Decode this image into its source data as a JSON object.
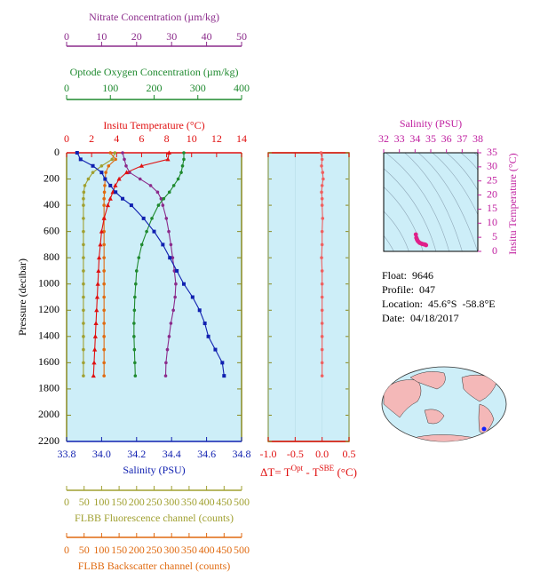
{
  "chart_data": [
    {
      "type": "line",
      "ylabel": "Pressure (decibar)",
      "ylim": [
        0,
        2200
      ],
      "yticks": [
        0,
        200,
        400,
        600,
        800,
        1000,
        1200,
        1400,
        1600,
        1800,
        2000,
        2200
      ],
      "y": [
        0,
        50,
        100,
        150,
        200,
        250,
        300,
        350,
        400,
        500,
        600,
        700,
        800,
        900,
        1000,
        1100,
        1200,
        1300,
        1400,
        1500,
        1600,
        1700
      ],
      "axes": [
        {
          "label": "Nitrate Concentration (µm/kg)",
          "color": "#8b2b8b",
          "lim": [
            0,
            50
          ],
          "ticks": [
            0,
            10,
            20,
            30,
            40,
            50
          ]
        },
        {
          "label": "Optode Oxygen Concentration (µm/kg)",
          "color": "#1f8a2f",
          "lim": [
            0,
            400
          ],
          "ticks": [
            0,
            100,
            200,
            300,
            400
          ]
        },
        {
          "label": "Insitu Temperature (°C)",
          "color": "#e01010",
          "lim": [
            0,
            14
          ],
          "ticks": [
            0,
            2,
            4,
            6,
            8,
            10,
            12,
            14
          ]
        },
        {
          "label": "Salinity (PSU)",
          "color": "#1020b0",
          "lim": [
            33.8,
            34.8
          ],
          "ticks": [
            33.8,
            {
              "value": 34,
              "label": "34.0"
            },
            34.2,
            34.4,
            34.6,
            34.8
          ]
        },
        {
          "label": "FLBB Fluorescence channel (counts)",
          "color": "#a0a030",
          "lim": [
            0,
            500
          ],
          "ticks": [
            0,
            50,
            100,
            150,
            200,
            250,
            300,
            350,
            400,
            450,
            500
          ]
        },
        {
          "label": "FLBB Backscatter channel (counts)",
          "color": "#e06a10",
          "lim": [
            0,
            500
          ],
          "ticks": [
            0,
            50,
            100,
            150,
            200,
            250,
            300,
            350,
            400,
            450,
            500
          ]
        }
      ],
      "series": [
        {
          "axis": 0,
          "color": "#8b2b8b",
          "marker": "circle",
          "values": [
            16,
            16.5,
            17,
            18,
            21,
            24,
            26,
            27,
            27.5,
            28.5,
            29.2,
            29.8,
            30.3,
            30.8,
            31.2,
            31,
            30.5,
            29.8,
            29.3,
            28.8,
            28.4,
            28.3
          ]
        },
        {
          "axis": 1,
          "color": "#1f8a2f",
          "marker": "circle",
          "values": [
            268,
            268,
            265,
            262,
            255,
            245,
            235,
            222,
            210,
            195,
            183,
            172,
            165,
            160,
            158,
            156,
            155,
            154,
            154,
            155,
            156,
            157
          ]
        },
        {
          "axis": 4,
          "color": "#a0a030",
          "marker": "circle",
          "values": [
            138,
            130,
            100,
            75,
            62,
            52,
            49,
            48,
            48,
            48,
            48,
            48,
            48,
            48,
            48,
            48,
            48,
            48,
            48,
            48,
            48,
            48
          ]
        },
        {
          "axis": 5,
          "color": "#e06a10",
          "marker": "circle",
          "values": [
            125,
            140,
            120,
            112,
            110,
            109,
            108,
            107,
            107,
            107,
            107,
            107,
            107,
            107,
            107,
            107,
            107,
            107,
            107,
            107,
            107,
            107
          ]
        },
        {
          "axis": 2,
          "color": "#e01010",
          "marker": "triangle",
          "values": [
            8.2,
            8.1,
            6,
            4.8,
            4.2,
            3.9,
            3.7,
            3.5,
            3.3,
            3,
            2.8,
            2.7,
            2.6,
            2.55,
            2.5,
            2.45,
            2.4,
            2.35,
            2.3,
            2.25,
            2.2,
            2.15
          ]
        },
        {
          "axis": 3,
          "color": "#1020b0",
          "marker": "square",
          "values": [
            33.86,
            33.88,
            33.95,
            34,
            34.02,
            34.05,
            34.08,
            34.12,
            34.17,
            34.24,
            34.3,
            34.35,
            34.39,
            34.43,
            34.47,
            34.52,
            34.56,
            34.59,
            34.61,
            34.65,
            34.69,
            34.7
          ]
        }
      ]
    },
    {
      "type": "line",
      "xlabel": [
        "ΔT= T",
        "Opt",
        " - T",
        "SBE",
        " (°C)"
      ],
      "color": "#f06060",
      "axis_color": "#e01010",
      "xlim": [
        -1,
        0.5
      ],
      "xticks": [
        {
          "value": -1,
          "label": "-1.0"
        },
        -0.5,
        {
          "value": 0,
          "label": "0.0"
        },
        0.5
      ],
      "ylim": [
        0,
        2200
      ],
      "yticks": [
        0,
        200,
        400,
        600,
        800,
        1000,
        1200,
        1400,
        1600,
        1800,
        2000,
        2200
      ],
      "y": [
        0,
        50,
        100,
        150,
        200,
        250,
        300,
        350,
        400,
        500,
        600,
        700,
        800,
        900,
        1000,
        1100,
        1200,
        1300,
        1400,
        1500,
        1600,
        1700
      ],
      "values": [
        -0.02,
        0,
        -0.01,
        0.01,
        0.02,
        0,
        -0.01,
        0,
        0,
        0.01,
        0,
        0,
        -0.01,
        0,
        0,
        0,
        0,
        0,
        0,
        0,
        0,
        0
      ]
    },
    {
      "type": "scatter",
      "title": "Salinity (PSU)",
      "ylabel": "Insitu Temperature (°C)",
      "axis_color": "#c020a0",
      "color": "#e0208a",
      "xlim": [
        32,
        38
      ],
      "xticks": [
        32,
        33,
        34,
        35,
        36,
        37,
        38
      ],
      "ylim": [
        0,
        35
      ],
      "yticks": [
        0,
        5,
        10,
        15,
        20,
        25,
        30,
        35
      ],
      "x": [
        34.05,
        34.08,
        34.12,
        34.17,
        34.24,
        34.3,
        34.39,
        34.47,
        34.56,
        34.65,
        34.7
      ],
      "values": [
        6,
        4.8,
        4.2,
        3.7,
        3.3,
        3,
        2.8,
        2.6,
        2.5,
        2.4,
        2.2
      ]
    }
  ],
  "info": {
    "lines": [
      "Float:  9646",
      "Profile:  047",
      "Location:  45.6°S  -58.8°E",
      "Date:  04/18/2017"
    ]
  }
}
